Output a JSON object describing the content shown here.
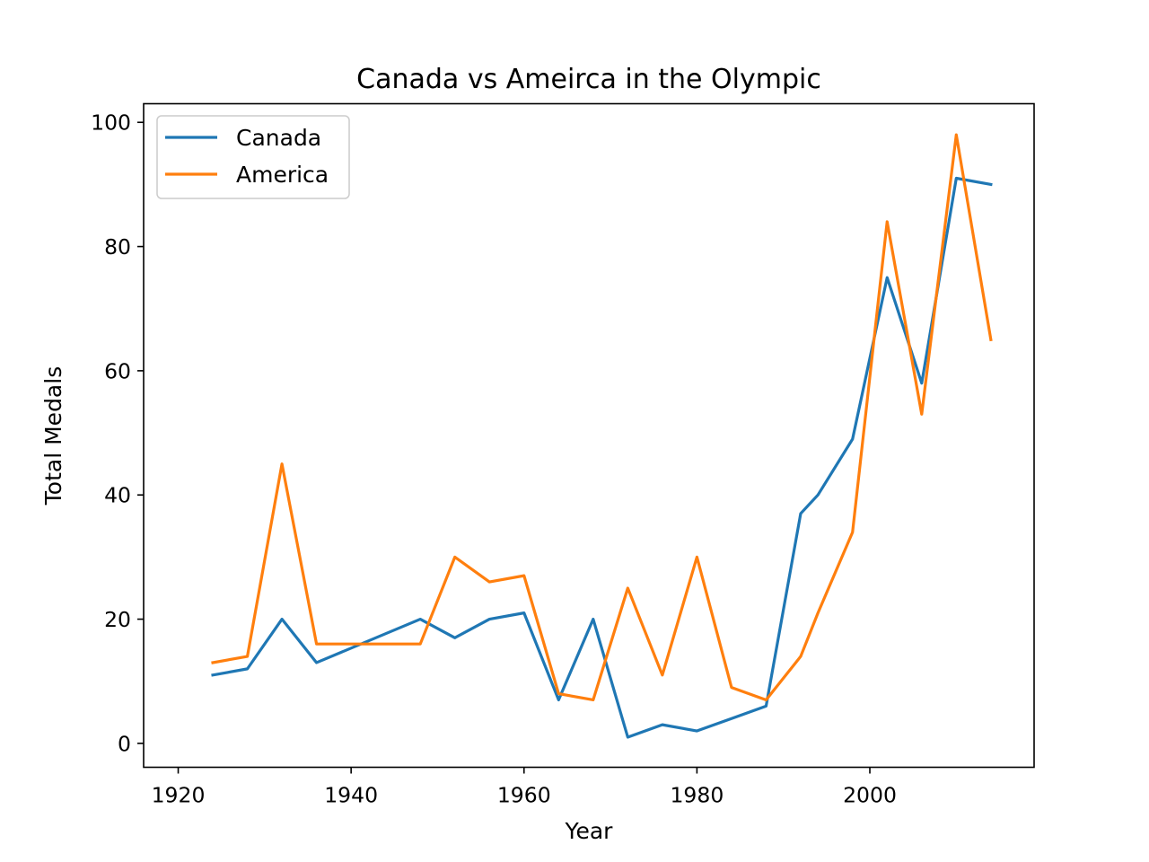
{
  "chart_data": {
    "type": "line",
    "title": "Canada vs Ameirca in the Olympic",
    "xlabel": "Year",
    "ylabel": "Total Medals",
    "xlim": [
      1916,
      2019
    ],
    "ylim": [
      -3.85,
      103
    ],
    "xticks": [
      1920,
      1940,
      1960,
      1980,
      2000
    ],
    "yticks": [
      0,
      20,
      40,
      60,
      80,
      100
    ],
    "grid": false,
    "legend_position": "upper-left",
    "series": [
      {
        "name": "Canada",
        "color": "#1f77b4",
        "x": [
          1924,
          1928,
          1932,
          1936,
          1948,
          1952,
          1956,
          1960,
          1964,
          1968,
          1972,
          1976,
          1980,
          1984,
          1988,
          1992,
          1994,
          1998,
          2002,
          2006,
          2010,
          2014
        ],
        "y": [
          11,
          12,
          20,
          13,
          20,
          17,
          20,
          21,
          7,
          20,
          1,
          3,
          2,
          4,
          6,
          37,
          40,
          49,
          75,
          58,
          91,
          90
        ]
      },
      {
        "name": "America",
        "color": "#ff7f0e",
        "x": [
          1924,
          1928,
          1932,
          1936,
          1948,
          1952,
          1956,
          1960,
          1964,
          1968,
          1972,
          1976,
          1980,
          1984,
          1988,
          1992,
          1994,
          1998,
          2002,
          2006,
          2010,
          2014
        ],
        "y": [
          13,
          14,
          45,
          16,
          16,
          30,
          26,
          27,
          8,
          7,
          25,
          11,
          30,
          9,
          7,
          14,
          21,
          34,
          84,
          53,
          98,
          65
        ]
      }
    ]
  }
}
